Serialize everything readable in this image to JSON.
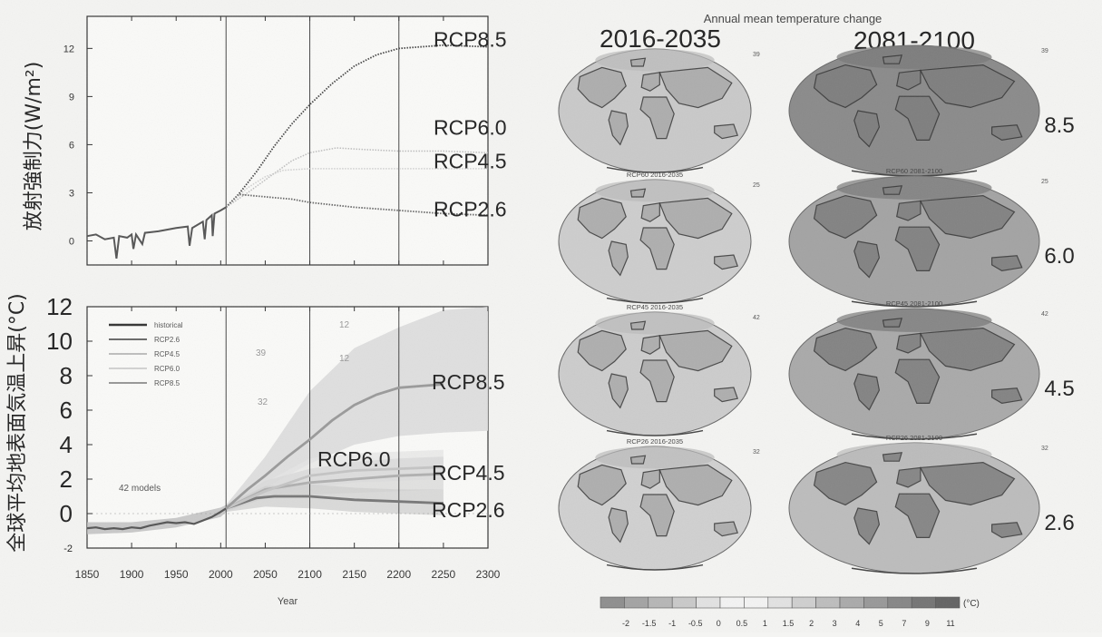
{
  "chart_data": [
    {
      "type": "line",
      "ylabel": "放射強制力(W/m²)",
      "x_range": [
        1850,
        2300
      ],
      "ylim": [
        -1.5,
        14
      ],
      "yticks": [
        0,
        3,
        6,
        9,
        12
      ],
      "grid": "vertical lines at 2006, 2100, 2200",
      "series": [
        {
          "name": "RCP8.5",
          "color": "#444444",
          "points": [
            [
              2006,
              2.1
            ],
            [
              2020,
              2.9
            ],
            [
              2040,
              4.3
            ],
            [
              2060,
              5.9
            ],
            [
              2080,
              7.3
            ],
            [
              2100,
              8.5
            ],
            [
              2125,
              9.8
            ],
            [
              2150,
              10.9
            ],
            [
              2175,
              11.6
            ],
            [
              2200,
              12.0
            ],
            [
              2250,
              12.2
            ],
            [
              2300,
              12.1
            ]
          ]
        },
        {
          "name": "RCP6.0",
          "color": "#bdbdbd",
          "points": [
            [
              2006,
              2.1
            ],
            [
              2030,
              3.0
            ],
            [
              2060,
              4.2
            ],
            [
              2080,
              5.0
            ],
            [
              2100,
              5.5
            ],
            [
              2130,
              5.8
            ],
            [
              2160,
              5.7
            ],
            [
              2200,
              5.6
            ],
            [
              2250,
              5.6
            ],
            [
              2300,
              5.5
            ]
          ]
        },
        {
          "name": "RCP4.5",
          "color": "#cfcfcf",
          "points": [
            [
              2006,
              2.1
            ],
            [
              2030,
              3.3
            ],
            [
              2050,
              4.0
            ],
            [
              2070,
              4.4
            ],
            [
              2100,
              4.5
            ],
            [
              2150,
              4.5
            ],
            [
              2200,
              4.5
            ],
            [
              2300,
              4.5
            ]
          ]
        },
        {
          "name": "RCP2.6",
          "color": "#666666",
          "points": [
            [
              2006,
              2.1
            ],
            [
              2020,
              2.9
            ],
            [
              2040,
              2.8
            ],
            [
              2060,
              2.7
            ],
            [
              2080,
              2.6
            ],
            [
              2100,
              2.4
            ],
            [
              2150,
              2.1
            ],
            [
              2200,
              1.9
            ],
            [
              2250,
              1.7
            ],
            [
              2300,
              1.6
            ]
          ]
        }
      ],
      "historical": {
        "color": "#555555",
        "points": [
          [
            1850,
            0.3
          ],
          [
            1860,
            0.4
          ],
          [
            1870,
            0.1
          ],
          [
            1880,
            0.2
          ],
          [
            1883,
            -1.1
          ],
          [
            1886,
            0.3
          ],
          [
            1895,
            0.2
          ],
          [
            1900,
            0.4
          ],
          [
            1902,
            -0.5
          ],
          [
            1905,
            0.4
          ],
          [
            1912,
            -0.2
          ],
          [
            1915,
            0.5
          ],
          [
            1930,
            0.6
          ],
          [
            1950,
            0.8
          ],
          [
            1963,
            0.9
          ],
          [
            1965,
            -0.3
          ],
          [
            1968,
            0.8
          ],
          [
            1980,
            1.2
          ],
          [
            1982,
            0.1
          ],
          [
            1984,
            1.3
          ],
          [
            1990,
            1.6
          ],
          [
            1991,
            0.3
          ],
          [
            1993,
            1.7
          ],
          [
            2000,
            1.9
          ],
          [
            2006,
            2.1
          ]
        ]
      },
      "labels": [
        "RCP8.5",
        "RCP6.0",
        "RCP4.5",
        "RCP2.6"
      ]
    },
    {
      "type": "line",
      "xlabel": "Year",
      "ylabel": "全球平均地表面気温上昇(°C)",
      "x_range": [
        1850,
        2300
      ],
      "xticks": [
        1850,
        1900,
        1950,
        2000,
        2050,
        2100,
        2150,
        2200,
        2250,
        2300
      ],
      "ylim": [
        -2,
        12
      ],
      "yticks": [
        -2,
        0,
        2,
        4,
        6,
        8,
        10,
        12
      ],
      "grid": "vertical lines at 2006, 2100, 2200",
      "legend": {
        "position": "top-left",
        "entries": [
          {
            "name": "historical",
            "color": "#333333"
          },
          {
            "name": "RCP2.6",
            "color": "#555555"
          },
          {
            "name": "RCP4.5",
            "color": "#b5b5b5"
          },
          {
            "name": "RCP6.0",
            "color": "#cccccc"
          },
          {
            "name": "RCP8.5",
            "color": "#888888"
          }
        ]
      },
      "model_counts": [
        "12",
        "39",
        "12",
        "32"
      ],
      "models_label": "42 models",
      "series": [
        {
          "name": "RCP8.5",
          "color": "#9a9a9a",
          "points": [
            [
              2006,
              0.3
            ],
            [
              2030,
              1.4
            ],
            [
              2050,
              2.2
            ],
            [
              2075,
              3.3
            ],
            [
              2100,
              4.3
            ],
            [
              2125,
              5.4
            ],
            [
              2150,
              6.3
            ],
            [
              2175,
              6.9
            ],
            [
              2200,
              7.3
            ],
            [
              2225,
              7.4
            ],
            [
              2250,
              7.5
            ]
          ],
          "band": [
            [
              2006,
              0.1,
              0.5
            ],
            [
              2050,
              1.5,
              3.3
            ],
            [
              2100,
              2.9,
              7.1
            ],
            [
              2150,
              4.0,
              9.6
            ],
            [
              2200,
              4.5,
              10.8
            ],
            [
              2250,
              4.7,
              11.8
            ],
            [
              2300,
              4.8,
              12.0
            ]
          ]
        },
        {
          "name": "RCP6.0",
          "color": "#c4c4c4",
          "points": [
            [
              2006,
              0.3
            ],
            [
              2050,
              1.3
            ],
            [
              2100,
              2.2
            ],
            [
              2150,
              2.5
            ],
            [
              2200,
              2.6
            ],
            [
              2250,
              2.7
            ]
          ],
          "band": [
            [
              2006,
              0.1,
              0.5
            ],
            [
              2050,
              1.0,
              1.8
            ],
            [
              2100,
              1.5,
              3.2
            ],
            [
              2150,
              1.8,
              3.5
            ],
            [
              2200,
              1.9,
              3.6
            ],
            [
              2250,
              2.0,
              3.7
            ]
          ]
        },
        {
          "name": "RCP4.5",
          "color": "#b0b0b0",
          "points": [
            [
              2006,
              0.3
            ],
            [
              2050,
              1.4
            ],
            [
              2100,
              1.8
            ],
            [
              2150,
              2.0
            ],
            [
              2200,
              2.2
            ],
            [
              2250,
              2.3
            ]
          ],
          "band": [
            [
              2006,
              0.1,
              0.5
            ],
            [
              2050,
              0.9,
              1.9
            ],
            [
              2100,
              1.1,
              2.6
            ],
            [
              2150,
              1.2,
              3.0
            ],
            [
              2200,
              1.3,
              3.2
            ],
            [
              2250,
              1.4,
              3.3
            ]
          ]
        },
        {
          "name": "RCP2.6",
          "color": "#777777",
          "points": [
            [
              2006,
              0.3
            ],
            [
              2040,
              0.9
            ],
            [
              2060,
              1.0
            ],
            [
              2100,
              1.0
            ],
            [
              2150,
              0.8
            ],
            [
              2200,
              0.7
            ],
            [
              2250,
              0.6
            ]
          ],
          "band": [
            [
              2006,
              0.1,
              0.5
            ],
            [
              2050,
              0.4,
              1.6
            ],
            [
              2100,
              0.3,
              1.7
            ],
            [
              2150,
              0.1,
              1.5
            ],
            [
              2200,
              0.0,
              1.4
            ],
            [
              2250,
              -0.1,
              1.4
            ]
          ]
        }
      ],
      "historical": {
        "color": "#555555",
        "points": [
          [
            1850,
            -0.85
          ],
          [
            1860,
            -0.8
          ],
          [
            1870,
            -0.9
          ],
          [
            1880,
            -0.85
          ],
          [
            1890,
            -0.9
          ],
          [
            1900,
            -0.8
          ],
          [
            1910,
            -0.85
          ],
          [
            1920,
            -0.7
          ],
          [
            1930,
            -0.6
          ],
          [
            1940,
            -0.5
          ],
          [
            1950,
            -0.55
          ],
          [
            1960,
            -0.5
          ],
          [
            1970,
            -0.6
          ],
          [
            1980,
            -0.4
          ],
          [
            1990,
            -0.2
          ],
          [
            2000,
            0.1
          ],
          [
            2006,
            0.3
          ]
        ],
        "band": [
          [
            1850,
            -1.2,
            -0.5
          ],
          [
            1900,
            -1.1,
            -0.5
          ],
          [
            1950,
            -0.8,
            -0.25
          ],
          [
            2000,
            -0.2,
            0.35
          ],
          [
            2006,
            0.1,
            0.5
          ]
        ]
      },
      "labels": [
        "RCP8.5",
        "RCP6.0",
        "RCP4.5",
        "RCP2.6"
      ]
    },
    {
      "type": "heatmap",
      "title": "Annual mean temperature change",
      "columns": [
        "2016-2035",
        "2081-2100"
      ],
      "rows": [
        {
          "label": "8.5",
          "map_titles": [
            "",
            ""
          ],
          "count": "39",
          "tone": [
            "#c9c9c9",
            "#8a8a8a"
          ]
        },
        {
          "label": "6.0",
          "map_titles": [
            "RCP60  2016-2035",
            "RCP60  2081-2100"
          ],
          "count": "25",
          "tone": [
            "#cdcdcd",
            "#a3a3a3"
          ]
        },
        {
          "label": "4.5",
          "map_titles": [
            "RCP45  2016-2035",
            "RCP45  2081-2100"
          ],
          "count": "42",
          "tone": [
            "#cccccc",
            "#a9a9a9"
          ]
        },
        {
          "label": "2.6",
          "map_titles": [
            "RCP26  2016-2035",
            "RCP26  2081-2100"
          ],
          "count": "32",
          "tone": [
            "#d0d0d0",
            "#bcbcbc"
          ]
        }
      ],
      "colorbar": {
        "unit": "(°C)",
        "tick_labels": [
          "-2",
          "-1.5",
          "-1",
          "-0.5",
          "0",
          "0.5",
          "1",
          "1.5",
          "2",
          "3",
          "4",
          "5",
          "7",
          "9",
          "11"
        ],
        "colors": [
          "#8e8e8e",
          "#a3a3a3",
          "#b6b6b6",
          "#c9c9c9",
          "#e2e2e2",
          "#f3f3f3",
          "#f3f3f3",
          "#e2e2e2",
          "#cfcfcf",
          "#bdbdbd",
          "#aaaaaa",
          "#989898",
          "#868686",
          "#747474",
          "#636363"
        ]
      }
    }
  ]
}
